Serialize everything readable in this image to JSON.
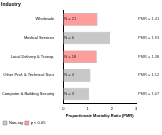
{
  "chart_data": {
    "type": "bar",
    "orientation": "horizontal",
    "stacked": true,
    "title": "Industry",
    "x_label": "Proportionate Mortality Ratio (PMR)",
    "categories": [
      "Wholesale",
      "Medical Services",
      "Local Delivery & Transp.",
      "Other Prof. & Technical Svcs",
      "Computer & Building Security"
    ],
    "series": [
      {
        "name": "Non-sig",
        "color": "#c8c8c8",
        "values": [
          null,
          1.93,
          null,
          1.12,
          1.07
        ],
        "value_labels": [
          null,
          "PMR = 1.93",
          null,
          "PMR = 1.12",
          "PMR = 1.07"
        ]
      },
      {
        "name": "p < 0.05",
        "color": "#ff9c9c",
        "values": [
          1.41,
          null,
          1.38,
          null,
          null
        ],
        "value_labels": [
          "PMR = 1.41",
          null,
          "PMR = 1.38",
          null,
          null
        ]
      }
    ],
    "annotations": [
      "N = 21",
      "N = 6",
      "N = 18",
      "N = 4",
      "N = 3"
    ],
    "data_labels": true,
    "xlim": [
      0,
      3
    ],
    "xticks": [
      0,
      1,
      2,
      3
    ],
    "grid": false,
    "legend": "bottom"
  }
}
